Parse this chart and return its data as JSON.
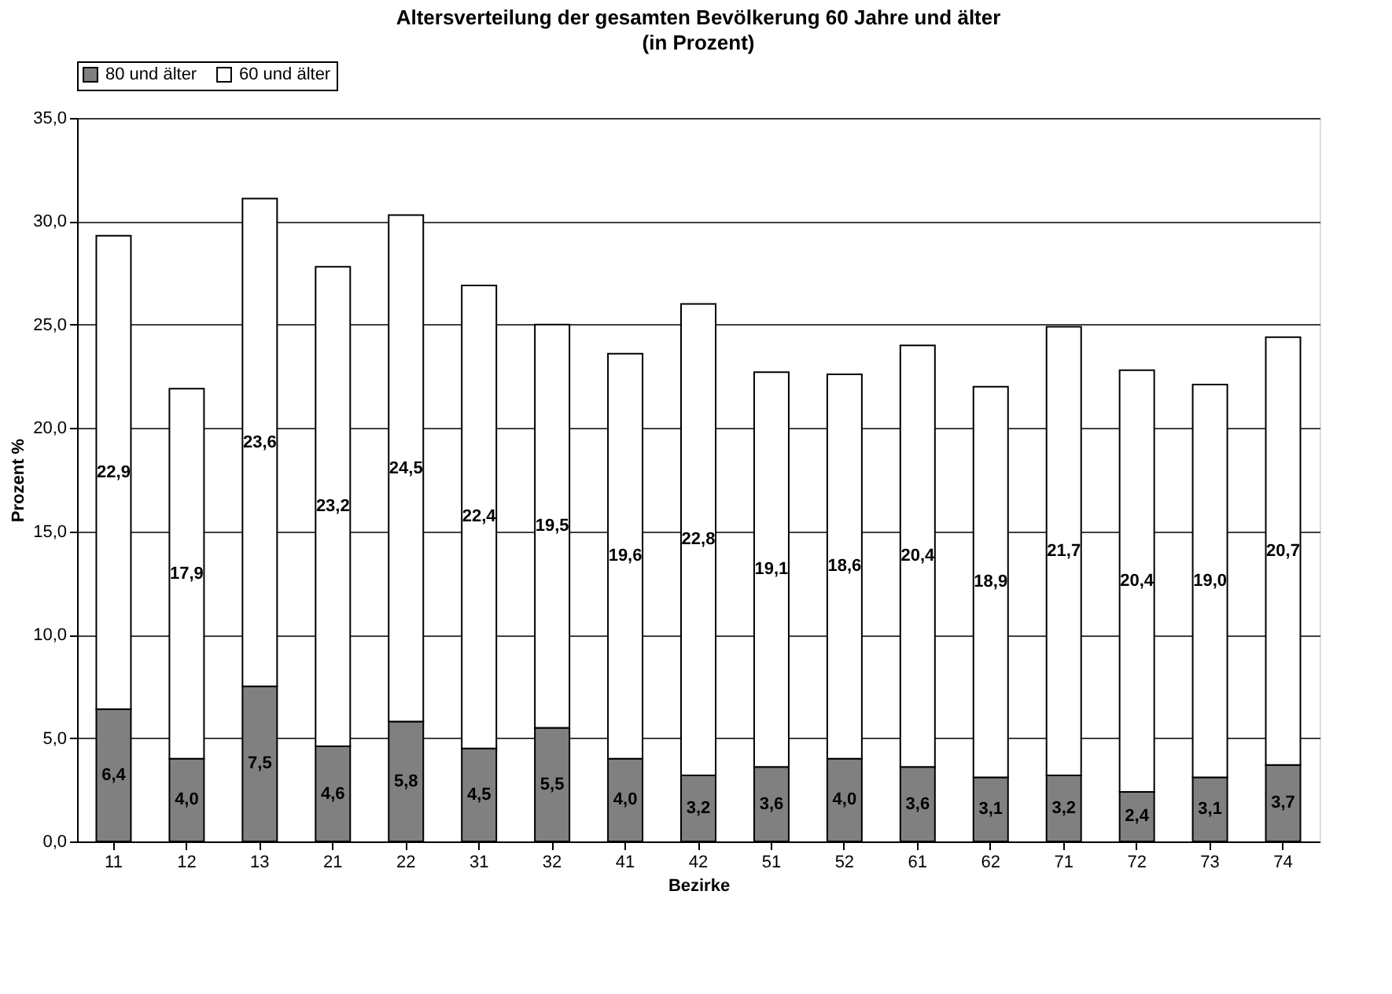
{
  "chart_data": {
    "type": "bar",
    "title": "Altersverteilung der gesamten Bevölkerung 60 Jahre und älter",
    "subtitle": "(in Prozent)",
    "xlabel": "Bezirke",
    "ylabel": "Prozent %",
    "categories": [
      "11",
      "12",
      "13",
      "21",
      "22",
      "31",
      "32",
      "41",
      "42",
      "51",
      "52",
      "61",
      "62",
      "71",
      "72",
      "73",
      "74"
    ],
    "stacked": true,
    "series": [
      {
        "name": "80 und älter",
        "color": "#808080",
        "values": [
          6.4,
          4.0,
          7.5,
          4.6,
          5.8,
          4.5,
          5.5,
          4.0,
          3.2,
          3.6,
          4.0,
          3.6,
          3.1,
          3.2,
          2.4,
          3.1,
          3.7
        ],
        "value_labels": [
          "6,4",
          "4,0",
          "7,5",
          "4,6",
          "5,8",
          "4,5",
          "5,5",
          "4,0",
          "3,2",
          "3,6",
          "4,0",
          "3,6",
          "3,1",
          "3,2",
          "2,4",
          "3,1",
          "3,7"
        ]
      },
      {
        "name": "60 und älter",
        "color": "#ffffff",
        "values": [
          22.9,
          17.9,
          23.6,
          23.2,
          24.5,
          22.4,
          19.5,
          19.6,
          22.8,
          19.1,
          18.6,
          20.4,
          18.9,
          21.7,
          20.4,
          19.0,
          20.7
        ],
        "value_labels": [
          "22,9",
          "17,9",
          "23,6",
          "23,2",
          "24,5",
          "22,4",
          "19,5",
          "19,6",
          "22,8",
          "19,1",
          "18,6",
          "20,4",
          "18,9",
          "21,7",
          "20,4",
          "19,0",
          "20,7"
        ]
      }
    ],
    "ylim": [
      0,
      35
    ],
    "yticks": [
      {
        "value": 0,
        "label": "0,0"
      },
      {
        "value": 5,
        "label": "5,0"
      },
      {
        "value": 10,
        "label": "10,0"
      },
      {
        "value": 15,
        "label": "15,0"
      },
      {
        "value": 20,
        "label": "20,0"
      },
      {
        "value": 25,
        "label": "25,0"
      },
      {
        "value": 30,
        "label": "30,0"
      },
      {
        "value": 35,
        "label": "35,0"
      }
    ],
    "grid": "y",
    "legend": "top"
  }
}
